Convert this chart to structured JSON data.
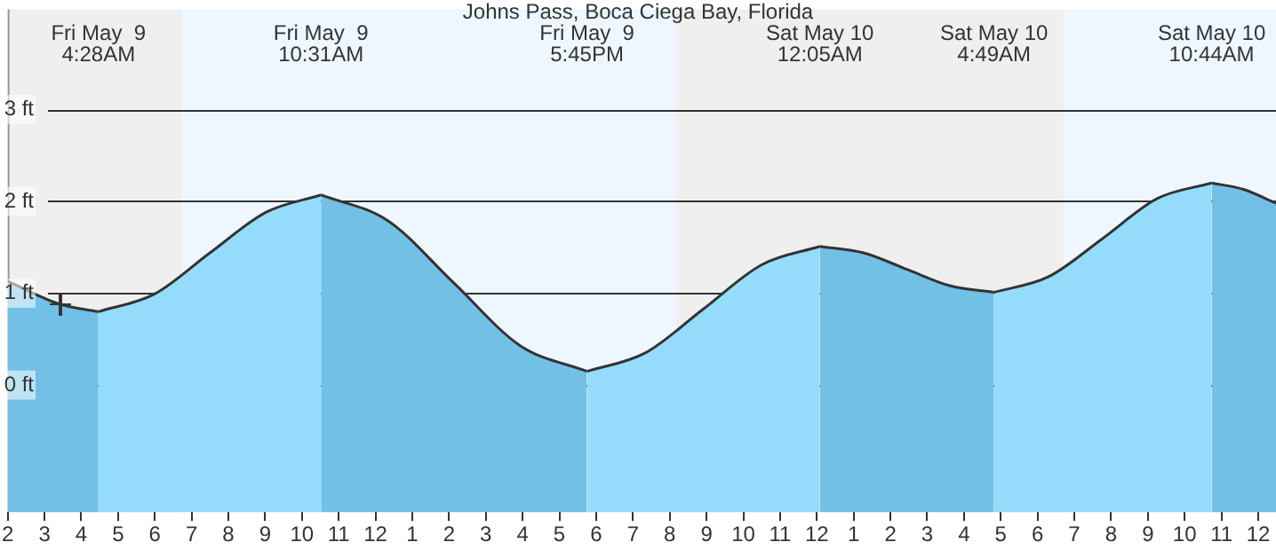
{
  "chart_data": {
    "type": "area",
    "title": "Johns Pass, Boca Ciega Bay, Florida",
    "x": [
      "--05-09T02:00",
      "--05-09T03:26",
      "--05-09T04:28",
      "--05-09T05:59",
      "--05-09T07:30",
      "--05-09T09:01",
      "--05-09T10:31",
      "--05-09T12:20",
      "--05-09T14:08",
      "--05-09T15:56",
      "--05-09T17:45",
      "--05-09T19:20",
      "--05-09T20:55",
      "--05-09T22:30",
      "--05-10T00:05",
      "--05-10T01:16",
      "--05-10T02:27",
      "--05-10T03:38",
      "--05-10T04:49",
      "--05-10T06:18",
      "--05-10T07:47",
      "--05-10T09:15",
      "--05-10T10:44",
      "--05-10T11:36",
      "--05-10T12:29"
    ],
    "series": [
      {
        "color": "#95dcfc",
        "values": [
          null,
          null,
          0.8,
          0.99,
          1.44,
          1.88,
          2.07,
          null,
          null,
          null,
          0.15,
          0.35,
          0.83,
          1.31,
          1.51,
          null,
          null,
          null,
          1.01,
          1.18,
          1.6,
          2.03,
          2.2,
          null,
          null
        ]
      },
      {
        "color": "#72c0e6",
        "values": [
          1.13,
          0.88,
          0.8,
          null,
          null,
          null,
          2.07,
          1.79,
          1.11,
          0.43,
          0.15,
          null,
          null,
          null,
          1.51,
          1.44,
          1.26,
          1.08,
          1.01,
          null,
          null,
          null,
          2.2,
          2.13,
          1.98
        ]
      }
    ],
    "xlim": [
      "--05-09T02:00",
      "--05-10T12:29"
    ],
    "xticks": [
      {
        "value": "--05-09T02:00",
        "label": "2"
      },
      {
        "value": "--05-09T03:00",
        "label": "3"
      },
      {
        "value": "--05-09T04:00",
        "label": "4"
      },
      {
        "value": "--05-09T05:00",
        "label": "5"
      },
      {
        "value": "--05-09T06:00",
        "label": "6"
      },
      {
        "value": "--05-09T07:00",
        "label": "7"
      },
      {
        "value": "--05-09T08:00",
        "label": "8"
      },
      {
        "value": "--05-09T09:00",
        "label": "9"
      },
      {
        "value": "--05-09T10:00",
        "label": "10"
      },
      {
        "value": "--05-09T11:00",
        "label": "11"
      },
      {
        "value": "--05-09T12:00",
        "label": "12"
      },
      {
        "value": "--05-09T13:00",
        "label": "1"
      },
      {
        "value": "--05-09T14:00",
        "label": "2"
      },
      {
        "value": "--05-09T15:00",
        "label": "3"
      },
      {
        "value": "--05-09T16:00",
        "label": "4"
      },
      {
        "value": "--05-09T17:00",
        "label": "5"
      },
      {
        "value": "--05-09T18:00",
        "label": "6"
      },
      {
        "value": "--05-09T19:00",
        "label": "7"
      },
      {
        "value": "--05-09T20:00",
        "label": "8"
      },
      {
        "value": "--05-09T21:00",
        "label": "9"
      },
      {
        "value": "--05-09T22:00",
        "label": "10"
      },
      {
        "value": "--05-09T23:00",
        "label": "11"
      },
      {
        "value": "--05-10T00:00",
        "label": "12"
      },
      {
        "value": "--05-10T01:00",
        "label": "1"
      },
      {
        "value": "--05-10T02:00",
        "label": "2"
      },
      {
        "value": "--05-10T03:00",
        "label": "3"
      },
      {
        "value": "--05-10T04:00",
        "label": "4"
      },
      {
        "value": "--05-10T05:00",
        "label": "5"
      },
      {
        "value": "--05-10T06:00",
        "label": "6"
      },
      {
        "value": "--05-10T07:00",
        "label": "7"
      },
      {
        "value": "--05-10T08:00",
        "label": "8"
      },
      {
        "value": "--05-10T09:00",
        "label": "9"
      },
      {
        "value": "--05-10T10:00",
        "label": "10"
      },
      {
        "value": "--05-10T11:00",
        "label": "11"
      },
      {
        "value": "--05-10T12:00",
        "label": "12"
      }
    ],
    "ylim": [
      -1.38,
      4.09
    ],
    "yticks": [
      {
        "value": 0,
        "label": "0 ft"
      },
      {
        "value": 1,
        "label": "1 ft"
      },
      {
        "value": 2,
        "label": "2 ft"
      },
      {
        "value": 3,
        "label": "3 ft"
      }
    ],
    "grid": "y",
    "legend": false,
    "marker": "none",
    "line_style": "solid",
    "bands": [
      {
        "axis": "x",
        "from": "--05-09T02:00",
        "to": "--05-09T06:45",
        "color": "#efefef"
      },
      {
        "axis": "x",
        "from": "--05-09T06:45",
        "to": "--05-09T20:10",
        "color": "#eef7ff"
      },
      {
        "axis": "x",
        "from": "--05-09T20:10",
        "to": "--05-10T06:43",
        "color": "#efefef"
      },
      {
        "axis": "x",
        "from": "--05-10T06:43",
        "to": "--05-10T12:29",
        "color": "#eef7ff"
      }
    ],
    "annotations": [
      "Fri May  9\n4:28AM",
      "Fri May  9\n10:31AM",
      "Fri May  9\n5:45PM",
      "Sat May 10\n12:05AM",
      "Sat May 10\n4:49AM",
      "Sat May 10\n10:44AM"
    ]
  }
}
